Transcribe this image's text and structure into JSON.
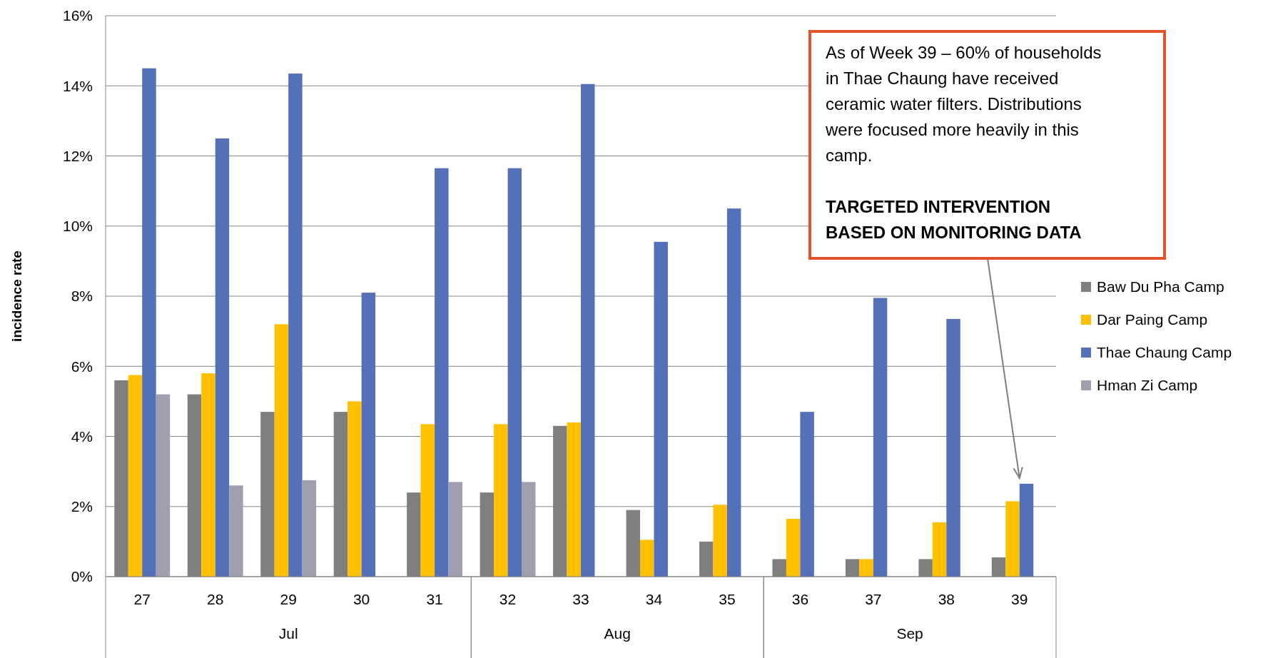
{
  "chart_data": {
    "type": "bar",
    "ylabel": "incidence rate",
    "categories": [
      "27",
      "28",
      "29",
      "30",
      "31",
      "32",
      "33",
      "34",
      "35",
      "36",
      "37",
      "38",
      "39"
    ],
    "series": [
      {
        "name": "Baw Du Pha Camp",
        "color": "#7f7f7f",
        "values": [
          5.6,
          5.2,
          4.7,
          4.7,
          2.4,
          2.4,
          4.3,
          1.9,
          1.0,
          0.5,
          0.5,
          0.5,
          0.55
        ]
      },
      {
        "name": "Dar Paing Camp",
        "color": "#ffc000",
        "values": [
          5.75,
          5.8,
          7.2,
          5.0,
          4.35,
          4.35,
          4.4,
          1.05,
          2.05,
          1.65,
          0.5,
          1.55,
          2.15
        ]
      },
      {
        "name": "Thae Chaung Camp",
        "color": "#5470b8",
        "values": [
          14.5,
          12.5,
          14.35,
          8.1,
          11.65,
          11.65,
          14.05,
          9.55,
          10.5,
          4.7,
          7.95,
          7.35,
          2.65
        ]
      },
      {
        "name": "Hman Zi Camp",
        "color": "#a09fb0",
        "values": [
          5.2,
          2.6,
          2.75,
          null,
          2.7,
          2.7,
          null,
          null,
          null,
          null,
          null,
          null,
          null
        ]
      }
    ],
    "ylim": [
      0,
      16
    ],
    "yticks": [
      {
        "value": 0,
        "label": "0%"
      },
      {
        "value": 2,
        "label": "2%"
      },
      {
        "value": 4,
        "label": "4%"
      },
      {
        "value": 6,
        "label": "6%"
      },
      {
        "value": 8,
        "label": "8%"
      },
      {
        "value": 10,
        "label": "10%"
      },
      {
        "value": 12,
        "label": "12%"
      },
      {
        "value": 14,
        "label": "14%"
      },
      {
        "value": 16,
        "label": "16%"
      }
    ],
    "grid": "y",
    "legend": "right",
    "annotations": [
      "As of Week 39 – 60% of households in Thae Chaung have received ceramic water filters. Distributions were focused more heavily in this camp.",
      "TARGETED INTERVENTION BASED ON MONITORING DATA",
      "Jul",
      "Aug",
      "Sep"
    ]
  }
}
